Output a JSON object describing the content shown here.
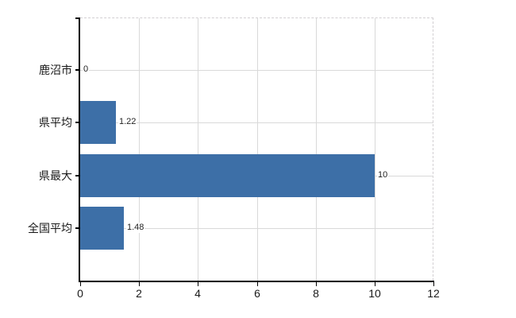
{
  "chart_data": {
    "type": "bar",
    "orientation": "horizontal",
    "title": "",
    "xlabel": "",
    "ylabel": "",
    "categories": [
      "鹿沼市",
      "県平均",
      "県最大",
      "全国平均"
    ],
    "values": [
      0,
      1.22,
      10,
      1.48
    ],
    "value_labels": [
      "0",
      "1.22",
      "10",
      "1.48"
    ],
    "x_ticks": [
      0,
      2,
      4,
      6,
      8,
      10,
      12
    ],
    "x_tick_labels": [
      "0",
      "2",
      "4",
      "6",
      "8",
      "10",
      "12"
    ],
    "xlim": [
      0,
      12
    ],
    "grid": true,
    "legend": false,
    "colors": {
      "bar": "#3d6fa7",
      "grid": "#d9d9d9",
      "frame_dashed": "#d2cfd2",
      "axis": "#000000",
      "text": "#1a1a1a",
      "value_text": "#222222",
      "background": "#ffffff"
    }
  }
}
